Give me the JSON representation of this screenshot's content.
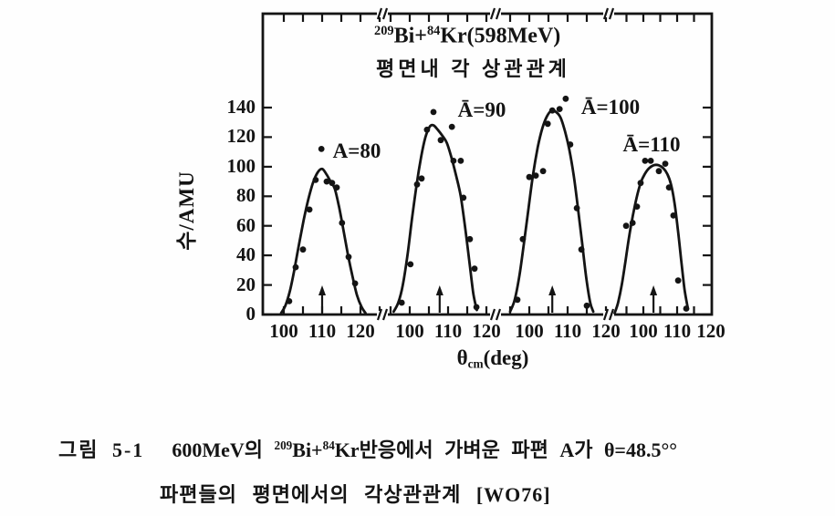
{
  "figure": {
    "title": {
      "sup1": "209",
      "base1": "Bi+",
      "sup2": "84",
      "base2": "Kr(598MeV)"
    },
    "subtitle": "평면내 각 상관관계",
    "y_axis": {
      "label": "수/AMU",
      "ticks": [
        0,
        20,
        40,
        60,
        80,
        100,
        120,
        140
      ]
    },
    "x_axis": {
      "label_theta": "θ",
      "label_sub": "cm",
      "label_rest": "(deg)"
    }
  },
  "chart_data": {
    "type": "line",
    "title": "209Bi+84Kr(598MeV) 평면내 각 상관관계",
    "xlabel": "θcm(deg)",
    "ylabel": "수/AMU",
    "ylim": [
      0,
      150
    ],
    "yticks": [
      0,
      20,
      40,
      60,
      80,
      100,
      120,
      140
    ],
    "grid": false,
    "layout_note": "four broken-axis panels sharing one y axis; axis break marks between panels on top and bottom axes; small upward arrows mark the correlation angle on the baseline of each panel",
    "panels": [
      {
        "label": "A=80",
        "x_ticks": [
          100,
          110,
          120
        ],
        "xlim": [
          94,
          126
        ],
        "arrow_x": 110,
        "curve": [
          [
            99.3,
            1
          ],
          [
            100.4,
            6
          ],
          [
            101.6,
            16
          ],
          [
            102.8,
            31
          ],
          [
            104,
            48
          ],
          [
            105.2,
            64
          ],
          [
            106.4,
            78
          ],
          [
            107.6,
            89
          ],
          [
            108.8,
            96
          ],
          [
            110,
            98.5
          ],
          [
            111.1,
            95
          ],
          [
            112.2,
            90
          ],
          [
            113.3,
            85
          ],
          [
            114.4,
            73
          ],
          [
            115.5,
            58
          ],
          [
            116.7,
            41
          ],
          [
            117.9,
            26
          ],
          [
            119.1,
            13
          ],
          [
            120.3,
            5
          ],
          [
            121.3,
            1
          ]
        ],
        "points": [
          [
            101.4,
            9
          ],
          [
            103.1,
            32
          ],
          [
            105,
            44
          ],
          [
            106.7,
            71
          ],
          [
            108.3,
            91
          ],
          [
            109.8,
            112
          ],
          [
            111.2,
            90
          ],
          [
            112.6,
            89
          ],
          [
            113.8,
            86
          ],
          [
            115.2,
            62
          ],
          [
            116.9,
            39
          ],
          [
            118.6,
            21
          ]
        ]
      },
      {
        "label": "Ā=90",
        "x_ticks": [
          100,
          110,
          120
        ],
        "xlim": [
          94,
          126
        ],
        "arrow_x": 107.8,
        "curve": [
          [
            95.8,
            2
          ],
          [
            97,
            8
          ],
          [
            98.2,
            20
          ],
          [
            99.4,
            40
          ],
          [
            100.6,
            65
          ],
          [
            101.8,
            88
          ],
          [
            103,
            107
          ],
          [
            104.1,
            120
          ],
          [
            105.2,
            127
          ],
          [
            106.2,
            128
          ],
          [
            107.3,
            125
          ],
          [
            108.5,
            121
          ],
          [
            109.7,
            116
          ],
          [
            110.9,
            106
          ],
          [
            112.1,
            94
          ],
          [
            113.3,
            80
          ],
          [
            114.5,
            58
          ],
          [
            115.6,
            35
          ],
          [
            116.6,
            14
          ],
          [
            117.5,
            3
          ]
        ],
        "points": [
          [
            97.9,
            8
          ],
          [
            100.2,
            34
          ],
          [
            101.9,
            88
          ],
          [
            103.1,
            92
          ],
          [
            104.5,
            125
          ],
          [
            106.2,
            137
          ],
          [
            108.1,
            118
          ],
          [
            111,
            127
          ],
          [
            111.4,
            104
          ],
          [
            113.3,
            104
          ],
          [
            114,
            79
          ],
          [
            115.7,
            51
          ],
          [
            116.9,
            31
          ],
          [
            117.4,
            5
          ]
        ]
      },
      {
        "label": "Ā=100",
        "x_ticks": [
          100,
          110,
          120
        ],
        "xlim": [
          94,
          126
        ],
        "arrow_x": 106,
        "curve": [
          [
            95,
            2
          ],
          [
            96.2,
            10
          ],
          [
            97.4,
            26
          ],
          [
            98.6,
            48
          ],
          [
            99.8,
            72
          ],
          [
            101,
            95
          ],
          [
            102.2,
            113
          ],
          [
            103.4,
            126
          ],
          [
            104.6,
            134
          ],
          [
            105.8,
            138
          ],
          [
            107,
            137
          ],
          [
            108.2,
            133
          ],
          [
            109.3,
            124
          ],
          [
            110.4,
            112
          ],
          [
            111.6,
            94
          ],
          [
            112.7,
            72
          ],
          [
            113.8,
            48
          ],
          [
            114.9,
            24
          ],
          [
            115.9,
            8
          ],
          [
            116.7,
            2
          ]
        ],
        "points": [
          [
            96.9,
            10
          ],
          [
            98.3,
            51
          ],
          [
            100,
            93
          ],
          [
            101.7,
            94
          ],
          [
            103.6,
            97
          ],
          [
            104.8,
            129
          ],
          [
            106,
            138
          ],
          [
            107.9,
            139
          ],
          [
            109.5,
            146
          ],
          [
            110.7,
            115
          ],
          [
            112.4,
            72
          ],
          [
            113.6,
            44
          ],
          [
            115,
            6
          ]
        ]
      },
      {
        "label": "Ā=110",
        "x_ticks": [
          100,
          110,
          120
        ],
        "xlim": [
          90,
          121
        ],
        "arrow_x": 103,
        "curve": [
          [
            91.5,
            1
          ],
          [
            92.5,
            8
          ],
          [
            93.6,
            20
          ],
          [
            94.7,
            36
          ],
          [
            95.8,
            53
          ],
          [
            96.9,
            67
          ],
          [
            98,
            79
          ],
          [
            99.2,
            89
          ],
          [
            100.4,
            95
          ],
          [
            101.7,
            99
          ],
          [
            103.1,
            101
          ],
          [
            104.5,
            101
          ],
          [
            105.9,
            99
          ],
          [
            107.1,
            95
          ],
          [
            108.2,
            88
          ],
          [
            109.2,
            76
          ],
          [
            110.2,
            58
          ],
          [
            111.2,
            37
          ],
          [
            112.2,
            17
          ],
          [
            113.2,
            4
          ]
        ],
        "points": [
          [
            94.9,
            60
          ],
          [
            96.8,
            62
          ],
          [
            98.1,
            73
          ],
          [
            99.2,
            89
          ],
          [
            100.5,
            104
          ],
          [
            102.2,
            104
          ],
          [
            104.6,
            97
          ],
          [
            106.5,
            102
          ],
          [
            107.6,
            86
          ],
          [
            108.9,
            67
          ],
          [
            110.3,
            23
          ],
          [
            112.7,
            4
          ]
        ]
      }
    ]
  },
  "caption": {
    "tag": "그림 5-1",
    "line1_pre": "600MeV의 ",
    "sup1": "209",
    "mid": "Bi+",
    "sup2": "84",
    "line1_post": "Kr반응에서 가벼운 파편 A가 θ=48.5°°",
    "line2": "파편들의 평면에서의 각상관관계 [WO76]"
  },
  "colors": {
    "ink": "#141414",
    "paper": "#fefefe"
  }
}
